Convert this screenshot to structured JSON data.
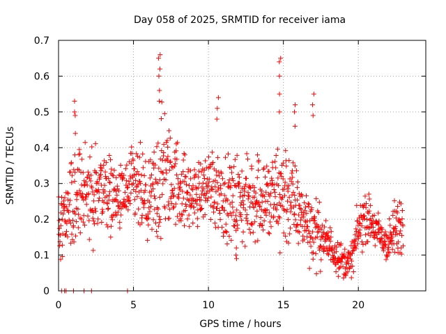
{
  "chart_data": {
    "type": "scatter",
    "title": "Day 058 of 2025, SRMTID for receiver iama",
    "xlabel": "GPS time / hours",
    "ylabel": "SRMTID / TECUs",
    "xlim": [
      0,
      24.5
    ],
    "ylim": [
      0,
      0.7
    ],
    "xticks": [
      0,
      5,
      10,
      15,
      20
    ],
    "xtick_labels": [
      "0",
      "5",
      "10",
      "15",
      "20"
    ],
    "yticks": [
      0,
      0.1,
      0.2,
      0.3,
      0.4,
      0.5,
      0.6,
      0.7
    ],
    "ytick_labels": [
      "0",
      "0.1",
      "0.2",
      "0.3",
      "0.4",
      "0.5",
      "0.6",
      "0.7"
    ],
    "grid": true,
    "marker": "+",
    "color": "#ff0000",
    "series": [
      {
        "name": "SRMTID",
        "envelope": {
          "x": [
            0.0,
            0.5,
            1.0,
            1.5,
            2.0,
            2.5,
            3.0,
            3.5,
            4.0,
            4.5,
            5.0,
            5.5,
            6.0,
            6.5,
            7.0,
            7.5,
            8.0,
            8.5,
            9.0,
            9.5,
            10.0,
            10.5,
            11.0,
            11.5,
            12.0,
            12.5,
            13.0,
            13.5,
            14.0,
            14.5,
            15.0,
            15.5,
            16.0,
            16.5,
            17.0,
            17.5,
            18.0,
            18.5,
            19.0,
            19.5,
            20.0,
            20.5,
            21.0,
            21.5,
            22.0,
            22.5,
            23.0
          ],
          "center": [
            0.2,
            0.22,
            0.24,
            0.25,
            0.27,
            0.28,
            0.29,
            0.27,
            0.25,
            0.27,
            0.29,
            0.27,
            0.23,
            0.28,
            0.33,
            0.31,
            0.3,
            0.27,
            0.26,
            0.28,
            0.3,
            0.29,
            0.27,
            0.25,
            0.26,
            0.24,
            0.26,
            0.27,
            0.25,
            0.26,
            0.28,
            0.26,
            0.22,
            0.2,
            0.17,
            0.15,
            0.13,
            0.11,
            0.08,
            0.08,
            0.17,
            0.21,
            0.18,
            0.15,
            0.13,
            0.17,
            0.19
          ],
          "spread": [
            0.07,
            0.06,
            0.09,
            0.1,
            0.09,
            0.09,
            0.09,
            0.07,
            0.06,
            0.07,
            0.08,
            0.09,
            0.07,
            0.12,
            0.15,
            0.08,
            0.09,
            0.07,
            0.06,
            0.06,
            0.07,
            0.09,
            0.08,
            0.07,
            0.09,
            0.08,
            0.09,
            0.09,
            0.09,
            0.1,
            0.12,
            0.1,
            0.07,
            0.06,
            0.08,
            0.05,
            0.04,
            0.04,
            0.03,
            0.03,
            0.05,
            0.05,
            0.04,
            0.04,
            0.04,
            0.06,
            0.06
          ]
        },
        "spikes": [
          {
            "x": 1.1,
            "values": [
              0.53,
              0.5,
              0.49,
              0.44
            ]
          },
          {
            "x": 6.75,
            "values": [
              0.66,
              0.65,
              0.62,
              0.6,
              0.56,
              0.53
            ]
          },
          {
            "x": 10.6,
            "values": [
              0.54,
              0.51,
              0.48
            ]
          },
          {
            "x": 14.8,
            "values": [
              0.65,
              0.64,
              0.6,
              0.55,
              0.5
            ]
          },
          {
            "x": 15.8,
            "values": [
              0.52,
              0.5,
              0.46
            ]
          },
          {
            "x": 17.0,
            "values": [
              0.55,
              0.52,
              0.49
            ]
          },
          {
            "x": 11.9,
            "values": [
              0.09,
              0.1,
              0.12
            ]
          }
        ],
        "zero_points_x": [
          0.2,
          0.4,
          0.5,
          1.0,
          1.7,
          2.2,
          4.6
        ]
      }
    ]
  }
}
